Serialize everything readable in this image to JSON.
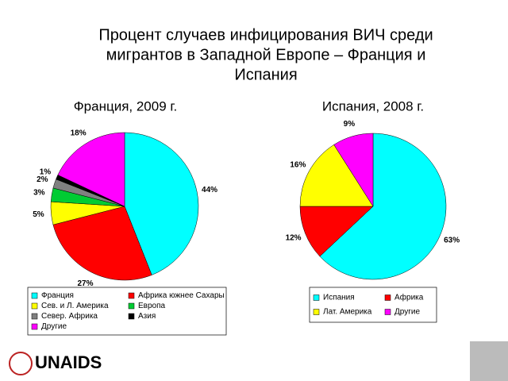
{
  "title_lines": [
    "Процент случаев инфицирования ВИЧ среди",
    "мигрантов в Западной Европе – Франция и",
    "Испания"
  ],
  "logo": "UNAIDS",
  "chart_data": [
    {
      "type": "pie",
      "title": "Франция, 2009 г.",
      "categories": [
        "Франция",
        "Африка южнее Сахары",
        "Сев. и Л. Америка",
        "Европа",
        "Север. Африка",
        "Азия",
        "Другие"
      ],
      "values": [
        44,
        27,
        5,
        3,
        2,
        1,
        18
      ],
      "value_labels": [
        "44%",
        "27%",
        "5%",
        "3%",
        "2%",
        "1%",
        "18%"
      ],
      "colors": [
        "#00ffff",
        "#ff0000",
        "#ffff00",
        "#00cc33",
        "#808080",
        "#000000",
        "#ff00ff"
      ]
    },
    {
      "type": "pie",
      "title": "Испания, 2008 г.",
      "categories": [
        "Испания",
        "Африка",
        "Лат. Америка",
        "Другие"
      ],
      "values": [
        63,
        12,
        16,
        9
      ],
      "value_labels": [
        "63%",
        "12%",
        "16%",
        "9%"
      ],
      "colors": [
        "#00ffff",
        "#ff0000",
        "#ffff00",
        "#ff00ff"
      ]
    }
  ]
}
